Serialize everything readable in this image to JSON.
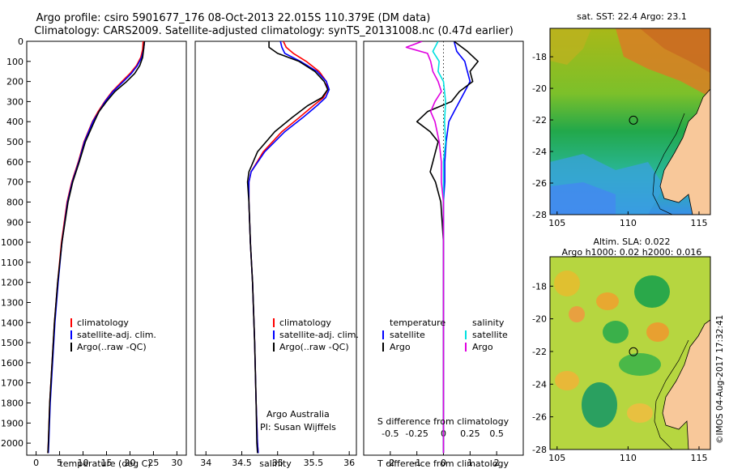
{
  "header": {
    "line1": "Argo profile: csiro 5901677_176 08-Oct-2013 22.015S 110.379E (DM data)",
    "line2": "Climatology: CARS2009. Satellite-adjusted climatology: synTS_20131008.nc (0.47d earlier)"
  },
  "credit": "©IMOS 04-Aug-2017 17:32:41",
  "colors": {
    "climatology": "#ff0000",
    "satellite": "#0000ff",
    "argo": "#000000",
    "salinity_satellite": "#00e0e0",
    "salinity_argo": "#e000e0",
    "land": "#f8c89a"
  },
  "depth_axis": {
    "ticks": [
      0,
      100,
      200,
      300,
      400,
      500,
      600,
      700,
      800,
      900,
      1000,
      1100,
      1200,
      1300,
      1400,
      1500,
      1600,
      1700,
      1800,
      1900,
      2000
    ],
    "range": [
      0,
      2060
    ]
  },
  "legend_main": [
    "climatology",
    "satellite-adj. clim.",
    "Argo(..raw -QC)"
  ],
  "legend_diff": {
    "temperature_head": "temperature",
    "salinity_head": "salinity",
    "rows": [
      "satellite",
      "Argo"
    ]
  },
  "argo_credit": [
    "Argo Australia",
    "PI: Susan Wijffels"
  ],
  "map_top": {
    "title": "sat. SST: 22.4  Argo: 23.1"
  },
  "map_bottom": {
    "title_line1": "Altim. SLA: 0.022",
    "title_line2": "Argo h1000: 0.02  h2000: 0.016"
  },
  "map_axes": {
    "lon_ticks": [
      "105",
      "110",
      "115"
    ],
    "lon_values": [
      105,
      110,
      115
    ],
    "lon_range": [
      104.5,
      115.8
    ],
    "lat_ticks": [
      "-18",
      "-20",
      "-22",
      "-24",
      "-26",
      "-28"
    ],
    "lat_values": [
      -18,
      -20,
      -22,
      -24,
      -26,
      -28
    ],
    "lat_range": [
      -28,
      -16.2
    ],
    "profile_location": {
      "lon": 110.379,
      "lat": -22.015
    }
  },
  "chart_data": [
    {
      "type": "line",
      "title": "",
      "xlabel": "temperature (deg C)",
      "ylabel": "",
      "xticks": [
        0,
        5,
        10,
        15,
        20,
        25,
        30
      ],
      "xlim": [
        -2,
        32
      ],
      "ylim": [
        0,
        2060
      ],
      "series": [
        {
          "name": "climatology",
          "depth": [
            0,
            40,
            80,
            120,
            160,
            200,
            250,
            300,
            350,
            400,
            500,
            600,
            700,
            800,
            1000,
            1200,
            1400,
            1600,
            1800,
            2000,
            2050
          ],
          "values": [
            22.8,
            22.7,
            22.3,
            21.4,
            20.0,
            18.3,
            16.2,
            14.6,
            13.2,
            12.0,
            10.2,
            9.0,
            7.6,
            6.6,
            5.4,
            4.6,
            3.9,
            3.4,
            2.9,
            2.6,
            2.5
          ]
        },
        {
          "name": "satellite-adj. clim.",
          "depth": [
            0,
            40,
            80,
            120,
            160,
            200,
            250,
            300,
            350,
            400,
            500,
            600,
            700,
            800,
            1000,
            1200,
            1400,
            1600,
            1800,
            2000,
            2050
          ],
          "values": [
            23.1,
            22.9,
            22.5,
            21.6,
            20.3,
            18.6,
            16.4,
            14.7,
            13.4,
            12.1,
            10.3,
            9.1,
            7.7,
            6.7,
            5.5,
            4.7,
            4.0,
            3.5,
            3.0,
            2.7,
            2.6
          ]
        },
        {
          "name": "Argo(..raw -QC)",
          "depth": [
            0,
            40,
            80,
            120,
            160,
            200,
            250,
            300,
            350,
            400,
            500,
            600,
            700,
            800,
            1000,
            1200,
            1400,
            1600,
            1800,
            2000,
            2050
          ],
          "values": [
            23.1,
            22.9,
            22.7,
            22.1,
            21.0,
            19.3,
            16.8,
            15.0,
            13.4,
            12.4,
            10.5,
            9.2,
            7.8,
            6.8,
            5.5,
            4.6,
            3.9,
            3.4,
            2.9,
            2.6,
            2.5
          ]
        }
      ]
    },
    {
      "type": "line",
      "title": "",
      "xlabel": "salinity",
      "ylabel": "",
      "xticks": [
        34,
        34.5,
        35,
        35.5,
        36
      ],
      "xlim": [
        33.85,
        36.1
      ],
      "ylim": [
        0,
        2060
      ],
      "series": [
        {
          "name": "climatology",
          "depth": [
            0,
            30,
            60,
            100,
            150,
            200,
            240,
            280,
            320,
            380,
            450,
            550,
            650,
            700,
            800,
            1000,
            1200,
            1500,
            1800,
            2000,
            2050
          ],
          "values": [
            35.08,
            35.12,
            35.22,
            35.4,
            35.58,
            35.68,
            35.7,
            35.64,
            35.5,
            35.3,
            35.06,
            34.8,
            34.63,
            34.6,
            34.6,
            34.62,
            34.65,
            34.68,
            34.7,
            34.72,
            34.73
          ]
        },
        {
          "name": "satellite-adj. clim.",
          "depth": [
            0,
            30,
            60,
            100,
            150,
            200,
            240,
            280,
            320,
            380,
            450,
            550,
            650,
            700,
            800,
            1000,
            1200,
            1500,
            1800,
            2000,
            2050
          ],
          "values": [
            35.04,
            35.06,
            35.1,
            35.32,
            35.55,
            35.68,
            35.72,
            35.67,
            35.55,
            35.35,
            35.1,
            34.82,
            34.63,
            34.6,
            34.6,
            34.62,
            34.65,
            34.68,
            34.7,
            34.72,
            34.73
          ]
        },
        {
          "name": "Argo(..raw -QC)",
          "depth": [
            0,
            30,
            60,
            100,
            150,
            200,
            240,
            280,
            320,
            380,
            450,
            550,
            650,
            700,
            800,
            1000,
            1200,
            1500,
            1800,
            2000,
            2050
          ],
          "values": [
            34.88,
            34.88,
            35.0,
            35.3,
            35.52,
            35.65,
            35.7,
            35.62,
            35.42,
            35.2,
            34.96,
            34.72,
            34.6,
            34.58,
            34.6,
            34.62,
            34.65,
            34.68,
            34.7,
            34.71,
            34.72
          ]
        }
      ]
    },
    {
      "type": "line",
      "title": "S difference from climatology",
      "xlabel": "T difference from climatology",
      "ylabel": "",
      "xticks": [
        -2,
        -1,
        0,
        1,
        2
      ],
      "s_ticks": [
        "-0.5",
        "-0.25",
        "0",
        "0.25",
        "0.5"
      ],
      "s_tick_values": [
        -0.5,
        -0.25,
        0,
        0.25,
        0.5
      ],
      "xlim": [
        -3,
        3
      ],
      "ylim": [
        0,
        2060
      ],
      "series": [
        {
          "name": "temperature satellite",
          "depth": [
            0,
            50,
            100,
            150,
            200,
            250,
            300,
            350,
            400,
            500,
            600,
            700,
            800,
            1000,
            1500,
            2050
          ],
          "values": [
            0.4,
            0.5,
            0.8,
            0.9,
            1.0,
            0.8,
            0.6,
            0.4,
            0.2,
            0.1,
            0.05,
            0.05,
            0.0,
            0.0,
            0.0,
            0.0
          ]
        },
        {
          "name": "temperature Argo",
          "depth": [
            0,
            50,
            100,
            150,
            200,
            250,
            300,
            350,
            400,
            450,
            500,
            550,
            600,
            650,
            700,
            800,
            1000,
            1500,
            2050
          ],
          "values": [
            0.4,
            0.9,
            1.3,
            1.0,
            1.1,
            0.6,
            0.3,
            -0.6,
            -1.0,
            -0.5,
            -0.2,
            -0.3,
            -0.4,
            -0.5,
            -0.3,
            -0.1,
            0.0,
            0.0,
            0.0
          ]
        },
        {
          "name": "salinity satellite",
          "depth": [
            0,
            50,
            100,
            150,
            200,
            300,
            400,
            500,
            600,
            700,
            800,
            1000,
            1500,
            2050
          ],
          "values": [
            -0.05,
            -0.1,
            -0.04,
            -0.05,
            0.0,
            0.02,
            0.01,
            0.02,
            0.0,
            0.0,
            0.0,
            0.0,
            0.0,
            0.0
          ]
        },
        {
          "name": "salinity Argo",
          "depth": [
            0,
            30,
            60,
            100,
            150,
            200,
            250,
            300,
            350,
            400,
            500,
            600,
            700,
            800,
            1000,
            1500,
            2050
          ],
          "values": [
            -0.2,
            -0.35,
            -0.15,
            -0.12,
            -0.1,
            -0.05,
            -0.02,
            -0.08,
            -0.12,
            -0.08,
            -0.04,
            -0.02,
            -0.02,
            0.0,
            0.0,
            0.0,
            0.0
          ]
        }
      ]
    }
  ]
}
